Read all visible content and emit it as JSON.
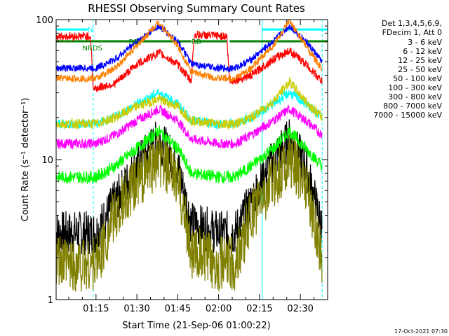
{
  "chart_data": {
    "type": "line",
    "title": "RHESSI Observing Summary Count Rates",
    "xlabel": "Start Time (21-Sep-06 01:00:22)",
    "ylabel": "Count Rate (s⁻¹ detector⁻¹)",
    "yscale": "log",
    "ylim": [
      1,
      100
    ],
    "xlim": [
      "01:00:22",
      "02:40:00"
    ],
    "grid": false,
    "legend_position": "right",
    "legend_header": [
      "Det 1,3,4,5,6,9,",
      "FDecim 1, Att 0"
    ],
    "x_tick_labels": [
      "01:15",
      "01:30",
      "01:45",
      "02:00",
      "02:15",
      "02:30"
    ],
    "y_tick_labels": [
      "1",
      "10",
      "100"
    ],
    "timestamp": "17-Oct-2021 07:30",
    "annotations": [
      {
        "text": "N",
        "time": "01:12",
        "color": "#00ffff"
      },
      {
        "text": "RD",
        "time": "01:27",
        "color": "#008000"
      },
      {
        "text": "RD",
        "time": "01:50",
        "color": "#008000"
      },
      {
        "text": "NRDS",
        "time": "01:10",
        "color": "#008000"
      }
    ],
    "series": [
      {
        "name": "3 - 6 keV",
        "color": "#000000",
        "points": [
          [
            "01:00",
            3.0
          ],
          [
            "01:15",
            3.0
          ],
          [
            "01:22",
            5
          ],
          [
            "01:30",
            9
          ],
          [
            "01:38",
            14
          ],
          [
            "01:45",
            9
          ],
          [
            "01:50",
            3.5
          ],
          [
            "02:00",
            3.0
          ],
          [
            "02:06",
            3.0
          ],
          [
            "02:12",
            5
          ],
          [
            "02:20",
            10
          ],
          [
            "02:26",
            14
          ],
          [
            "02:32",
            9
          ],
          [
            "02:38",
            3.2
          ]
        ]
      },
      {
        "name": "6 - 12 keV",
        "color": "#ff00ff",
        "points": [
          [
            "01:00",
            13
          ],
          [
            "01:15",
            13
          ],
          [
            "01:22",
            15
          ],
          [
            "01:30",
            19
          ],
          [
            "01:38",
            23
          ],
          [
            "01:45",
            19
          ],
          [
            "01:50",
            14
          ],
          [
            "02:00",
            13
          ],
          [
            "02:06",
            13
          ],
          [
            "02:12",
            15
          ],
          [
            "02:20",
            19
          ],
          [
            "02:26",
            23
          ],
          [
            "02:32",
            19
          ],
          [
            "02:38",
            15
          ]
        ]
      },
      {
        "name": "12 - 25 keV",
        "color": "#00ff00",
        "points": [
          [
            "01:00",
            7.5
          ],
          [
            "01:15",
            7.5
          ],
          [
            "01:22",
            9
          ],
          [
            "01:30",
            12
          ],
          [
            "01:38",
            16
          ],
          [
            "01:45",
            12
          ],
          [
            "01:50",
            8
          ],
          [
            "02:00",
            7.5
          ],
          [
            "02:06",
            7.5
          ],
          [
            "02:12",
            9
          ],
          [
            "02:20",
            12
          ],
          [
            "02:26",
            16
          ],
          [
            "02:32",
            12
          ],
          [
            "02:38",
            9
          ]
        ]
      },
      {
        "name": "25 - 50 keV",
        "color": "#00ffff",
        "points": [
          [
            "01:00",
            18
          ],
          [
            "01:15",
            18
          ],
          [
            "01:22",
            20
          ],
          [
            "01:30",
            25
          ],
          [
            "01:38",
            30
          ],
          [
            "01:45",
            25
          ],
          [
            "01:50",
            19
          ],
          [
            "02:00",
            18
          ],
          [
            "02:06",
            18
          ],
          [
            "02:12",
            20
          ],
          [
            "02:20",
            25
          ],
          [
            "02:26",
            30
          ],
          [
            "02:32",
            25
          ],
          [
            "02:38",
            20
          ]
        ]
      },
      {
        "name": "50 - 100 keV",
        "color": "#cccc00",
        "points": [
          [
            "01:00",
            18
          ],
          [
            "01:15",
            18
          ],
          [
            "01:22",
            20
          ],
          [
            "01:30",
            24
          ],
          [
            "01:38",
            27
          ],
          [
            "01:45",
            24
          ],
          [
            "01:50",
            19
          ],
          [
            "02:00",
            18
          ],
          [
            "02:06",
            18
          ],
          [
            "02:12",
            20
          ],
          [
            "02:20",
            26
          ],
          [
            "02:26",
            36
          ],
          [
            "02:32",
            26
          ],
          [
            "02:38",
            20
          ]
        ]
      },
      {
        "name": "100 - 300 keV",
        "color": "#ff0000",
        "points": [
          [
            "01:00",
            76
          ],
          [
            "01:13",
            76
          ],
          [
            "01:14",
            32
          ],
          [
            "01:22",
            35
          ],
          [
            "01:30",
            48
          ],
          [
            "01:38",
            58
          ],
          [
            "01:45",
            48
          ],
          [
            "01:50",
            36
          ],
          [
            "01:51",
            78
          ],
          [
            "02:03",
            76
          ],
          [
            "02:04",
            36
          ],
          [
            "02:12",
            40
          ],
          [
            "02:20",
            52
          ],
          [
            "02:26",
            60
          ],
          [
            "02:32",
            48
          ],
          [
            "02:38",
            36
          ]
        ]
      },
      {
        "name": "300 - 800 keV",
        "color": "#0000ff",
        "points": [
          [
            "01:00",
            45
          ],
          [
            "01:15",
            45
          ],
          [
            "01:22",
            52
          ],
          [
            "01:30",
            70
          ],
          [
            "01:38",
            90
          ],
          [
            "01:45",
            70
          ],
          [
            "01:50",
            48
          ],
          [
            "02:00",
            45
          ],
          [
            "02:06",
            45
          ],
          [
            "02:12",
            52
          ],
          [
            "02:20",
            70
          ],
          [
            "02:26",
            90
          ],
          [
            "02:32",
            70
          ],
          [
            "02:38",
            50
          ]
        ]
      },
      {
        "name": "800 - 7000 keV",
        "color": "#ff8000",
        "points": [
          [
            "01:00",
            38
          ],
          [
            "01:15",
            38
          ],
          [
            "01:22",
            45
          ],
          [
            "01:30",
            65
          ],
          [
            "01:38",
            96
          ],
          [
            "01:45",
            65
          ],
          [
            "01:50",
            42
          ],
          [
            "02:00",
            38
          ],
          [
            "02:06",
            38
          ],
          [
            "02:12",
            45
          ],
          [
            "02:20",
            65
          ],
          [
            "02:26",
            97
          ],
          [
            "02:32",
            65
          ],
          [
            "02:38",
            44
          ]
        ]
      },
      {
        "name": "7000 - 15000 keV",
        "color": "#808000",
        "points": [
          [
            "01:00",
            1.8
          ],
          [
            "01:15",
            1.8
          ],
          [
            "01:22",
            4
          ],
          [
            "01:30",
            7
          ],
          [
            "01:38",
            10
          ],
          [
            "01:45",
            7
          ],
          [
            "01:50",
            2.2
          ],
          [
            "02:00",
            1.8
          ],
          [
            "02:06",
            1.8
          ],
          [
            "02:12",
            4
          ],
          [
            "02:20",
            7
          ],
          [
            "02:26",
            10
          ],
          [
            "02:32",
            7
          ],
          [
            "02:38",
            2
          ]
        ]
      }
    ],
    "flag_bars": [
      {
        "color": "#00ffff",
        "y": 85,
        "segments": [
          [
            "01:00",
            "01:12"
          ],
          [
            "02:16",
            "02:40"
          ]
        ]
      },
      {
        "color": "#008000",
        "y": 70,
        "segments": [
          [
            "01:00",
            "01:12"
          ],
          [
            "01:12",
            "01:50"
          ],
          [
            "01:51",
            "02:03"
          ],
          [
            "02:04",
            "02:40"
          ]
        ]
      }
    ],
    "vertical_markers": {
      "solid": [
        "01:00:22",
        "02:16"
      ],
      "dashed": [
        "01:14",
        "02:38"
      ],
      "color": "#00ffff"
    }
  }
}
